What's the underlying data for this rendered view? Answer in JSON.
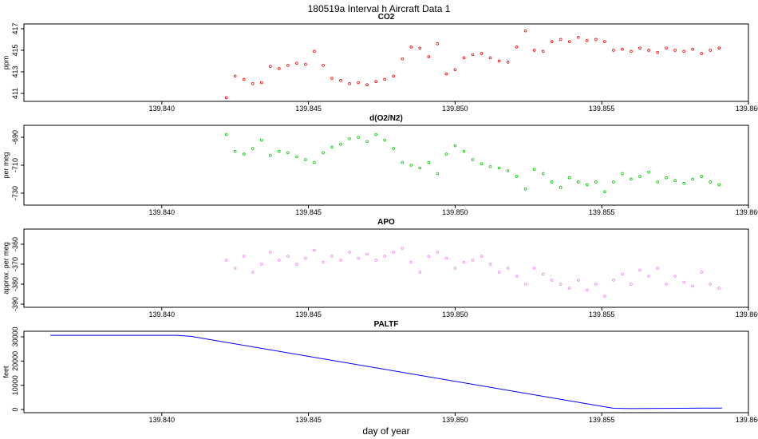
{
  "title": "180519a   Interval h Aircraft Data 1",
  "chart_data": [
    {
      "type": "scatter",
      "title": "CO2",
      "y_label": "ppm",
      "color": "#ff0000",
      "x": [
        139.8422,
        139.8425,
        139.8428,
        139.8431,
        139.8434,
        139.8437,
        139.844,
        139.8443,
        139.8446,
        139.8449,
        139.8452,
        139.8455,
        139.8458,
        139.8461,
        139.8464,
        139.8467,
        139.847,
        139.8473,
        139.8476,
        139.8479,
        139.8482,
        139.8485,
        139.8488,
        139.8491,
        139.8494,
        139.8497,
        139.85,
        139.8503,
        139.8506,
        139.8509,
        139.8512,
        139.8515,
        139.8518,
        139.8521,
        139.8524,
        139.8527,
        139.853,
        139.8533,
        139.8536,
        139.8539,
        139.8542,
        139.8545,
        139.8548,
        139.8551,
        139.8554,
        139.8557,
        139.856,
        139.8563,
        139.8566,
        139.8569,
        139.8572,
        139.8575,
        139.8578,
        139.8581,
        139.8584,
        139.8587,
        139.859
      ],
      "values": [
        410.6,
        412.6,
        412.3,
        411.9,
        412.0,
        413.5,
        413.3,
        413.6,
        413.8,
        413.7,
        414.9,
        413.6,
        412.4,
        412.2,
        411.9,
        412.0,
        411.8,
        412.1,
        412.3,
        412.6,
        414.2,
        415.3,
        415.2,
        414.4,
        415.6,
        412.8,
        413.2,
        414.3,
        414.6,
        414.7,
        414.3,
        414.0,
        413.9,
        415.3,
        416.8,
        415.0,
        414.9,
        415.8,
        416.0,
        415.8,
        416.2,
        415.9,
        416.0,
        415.8,
        415.0,
        415.1,
        414.9,
        415.2,
        415.0,
        414.8,
        415.2,
        415.0,
        414.9,
        415.1,
        414.7,
        415.0,
        415.2
      ],
      "xlim": [
        139.8353,
        139.86
      ],
      "ylim": [
        410.26,
        417.44
      ],
      "xticks": [
        {
          "value": 139.84,
          "label": "139.840"
        },
        {
          "value": 139.845,
          "label": "139.845"
        },
        {
          "value": 139.85,
          "label": "139.850"
        },
        {
          "value": 139.855,
          "label": "139.855"
        },
        {
          "value": 139.86,
          "label": "139.860"
        }
      ],
      "yticks": [
        411,
        413,
        415,
        417
      ]
    },
    {
      "type": "scatter",
      "title": "d(O2/N2)",
      "y_label": "per meg",
      "color": "#00cc00",
      "x": [
        139.8422,
        139.8425,
        139.8428,
        139.8431,
        139.8434,
        139.8437,
        139.844,
        139.8443,
        139.8446,
        139.8449,
        139.8452,
        139.8455,
        139.8458,
        139.8461,
        139.8464,
        139.8467,
        139.847,
        139.8473,
        139.8476,
        139.8479,
        139.8482,
        139.8485,
        139.8488,
        139.8491,
        139.8494,
        139.8497,
        139.85,
        139.8503,
        139.8506,
        139.8509,
        139.8512,
        139.8515,
        139.8518,
        139.8521,
        139.8524,
        139.8527,
        139.853,
        139.8533,
        139.8536,
        139.8539,
        139.8542,
        139.8545,
        139.8548,
        139.8551,
        139.8554,
        139.8557,
        139.856,
        139.8563,
        139.8566,
        139.8569,
        139.8572,
        139.8575,
        139.8578,
        139.8581,
        139.8584,
        139.8587,
        139.859
      ],
      "values": [
        -688,
        -700,
        -702,
        -698,
        -692,
        -703,
        -700,
        -701,
        -704,
        -706,
        -708,
        -701,
        -697,
        -695,
        -691,
        -690,
        -693,
        -688,
        -692,
        -698,
        -708,
        -710,
        -712,
        -708,
        -716,
        -702,
        -696,
        -700,
        -706,
        -709,
        -711,
        -712,
        -714,
        -718,
        -727,
        -713,
        -716,
        -722,
        -726,
        -719,
        -722,
        -724,
        -722,
        -729,
        -722,
        -716,
        -720,
        -718,
        -715,
        -722,
        -719,
        -721,
        -723,
        -720,
        -718,
        -722,
        -724
      ],
      "xlim": [
        139.8353,
        139.86
      ],
      "ylim": [
        -738.6,
        -681.4
      ],
      "xticks": [
        {
          "value": 139.84,
          "label": "139.840"
        },
        {
          "value": 139.845,
          "label": "139.845"
        },
        {
          "value": 139.85,
          "label": "139.850"
        },
        {
          "value": 139.855,
          "label": "139.855"
        },
        {
          "value": 139.86,
          "label": "139.860"
        }
      ],
      "yticks": [
        -690,
        -710,
        -730
      ]
    },
    {
      "type": "scatter",
      "title": "APO",
      "y_label": "approx. per meg",
      "color": "#ee82ee",
      "x": [
        139.8422,
        139.8425,
        139.8428,
        139.8431,
        139.8434,
        139.8437,
        139.844,
        139.8443,
        139.8446,
        139.8449,
        139.8452,
        139.8455,
        139.8458,
        139.8461,
        139.8464,
        139.8467,
        139.847,
        139.8473,
        139.8476,
        139.8479,
        139.8482,
        139.8485,
        139.8488,
        139.8491,
        139.8494,
        139.8497,
        139.85,
        139.8503,
        139.8506,
        139.8509,
        139.8512,
        139.8515,
        139.8518,
        139.8521,
        139.8524,
        139.8527,
        139.853,
        139.8533,
        139.8536,
        139.8539,
        139.8542,
        139.8545,
        139.8548,
        139.8551,
        139.8554,
        139.8557,
        139.856,
        139.8563,
        139.8566,
        139.8569,
        139.8572,
        139.8575,
        139.8578,
        139.8581,
        139.8584,
        139.8587,
        139.859
      ],
      "values": [
        -368,
        -372,
        -366,
        -374,
        -370,
        -364,
        -368,
        -366,
        -370,
        -367,
        -363,
        -369,
        -366,
        -368,
        -364,
        -367,
        -365,
        -368,
        -366,
        -364,
        -362,
        -369,
        -374,
        -366,
        -364,
        -367,
        -372,
        -369,
        -368,
        -366,
        -370,
        -374,
        -372,
        -376,
        -380,
        -372,
        -375,
        -378,
        -380,
        -382,
        -378,
        -383,
        -380,
        -386,
        -378,
        -375,
        -380,
        -373,
        -376,
        -372,
        -380,
        -376,
        -379,
        -381,
        -374,
        -380,
        -382
      ],
      "xlim": [
        139.8353,
        139.86
      ],
      "ylim": [
        -391.6,
        -352.4
      ],
      "xticks": [
        {
          "value": 139.84,
          "label": "139.840"
        },
        {
          "value": 139.845,
          "label": "139.845"
        },
        {
          "value": 139.85,
          "label": "139.850"
        },
        {
          "value": 139.855,
          "label": "139.855"
        },
        {
          "value": 139.86,
          "label": "139.860"
        }
      ],
      "yticks": [
        -360,
        -370,
        -380,
        -390
      ]
    },
    {
      "type": "line",
      "title": "PALTF",
      "y_label": "feet",
      "x_label": "day of year",
      "color": "#0000ff",
      "x": [
        139.8362,
        139.8405,
        139.841,
        139.8554,
        139.856,
        139.8591
      ],
      "values": [
        30600,
        30600,
        30200,
        500,
        400,
        600
      ],
      "xlim": [
        139.8353,
        139.86
      ],
      "ylim": [
        -1300,
        32300
      ],
      "xticks": [
        {
          "value": 139.84,
          "label": "139.840"
        },
        {
          "value": 139.845,
          "label": "139.845"
        },
        {
          "value": 139.85,
          "label": "139.850"
        },
        {
          "value": 139.855,
          "label": "139.855"
        },
        {
          "value": 139.86,
          "label": "139.860"
        }
      ],
      "yticks": [
        0,
        10000,
        20000,
        30000
      ]
    }
  ]
}
